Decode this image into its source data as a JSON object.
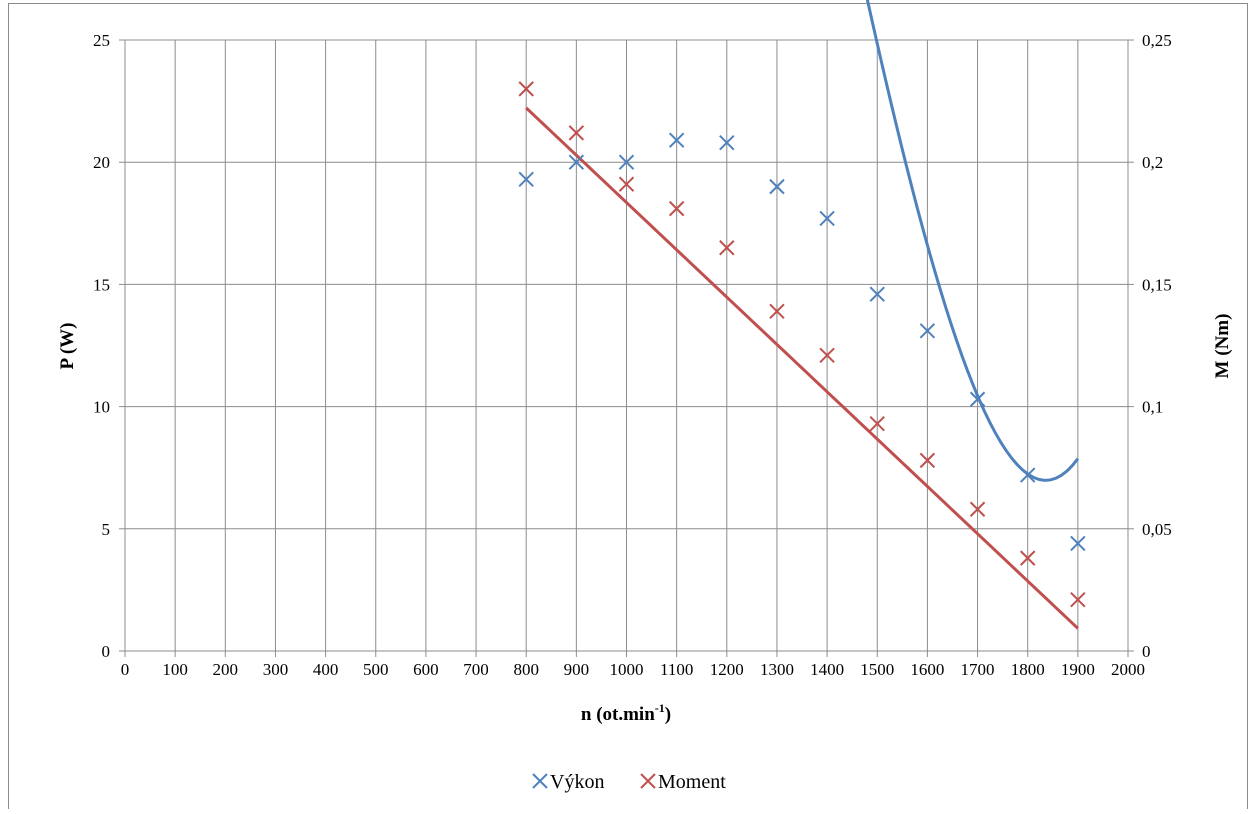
{
  "chart_data": {
    "type": "scatter",
    "title": "",
    "xlabel": "n (ot.min",
    "xlabel_sup": "-1",
    "xlabel_end": ")",
    "ylabel": "P (W)",
    "y2label": "M (Nm)",
    "xlim": [
      0,
      2000
    ],
    "ylim": [
      0,
      25
    ],
    "y2lim": [
      0,
      0.25
    ],
    "x_ticks": [
      "0",
      "100",
      "200",
      "300",
      "400",
      "500",
      "600",
      "700",
      "800",
      "900",
      "1000",
      "1100",
      "1200",
      "1300",
      "1400",
      "1500",
      "1600",
      "1700",
      "1800",
      "1900",
      "2000"
    ],
    "y_ticks": [
      "0",
      "5",
      "10",
      "15",
      "20",
      "25"
    ],
    "y2_ticks": [
      "0",
      "0,05",
      "0,1",
      "0,15",
      "0,2",
      "0,25"
    ],
    "grid": true,
    "legend_position": "bottom",
    "series": [
      {
        "name": "Výkon",
        "axis": "left",
        "color": "#4f81bd",
        "x": [
          800,
          900,
          1000,
          1100,
          1200,
          1300,
          1400,
          1500,
          1600,
          1700,
          1800,
          1900
        ],
        "y": [
          19.3,
          20.0,
          20.0,
          20.9,
          20.8,
          19.0,
          17.7,
          14.6,
          13.1,
          10.3,
          7.2,
          4.4
        ],
        "trend_coeffs": [
          -193.4,
          0.7077,
          -0.0005926,
          1.452e-07
        ]
      },
      {
        "name": "Moment",
        "axis": "right",
        "color": "#c0504d",
        "x": [
          800,
          900,
          1000,
          1100,
          1200,
          1300,
          1400,
          1500,
          1600,
          1700,
          1800,
          1900
        ],
        "y": [
          0.23,
          0.212,
          0.191,
          0.181,
          0.165,
          0.139,
          0.121,
          0.093,
          0.078,
          0.058,
          0.038,
          0.021
        ],
        "trend_coeffs": [
          0.3771,
          -0.0001936
        ]
      }
    ]
  }
}
